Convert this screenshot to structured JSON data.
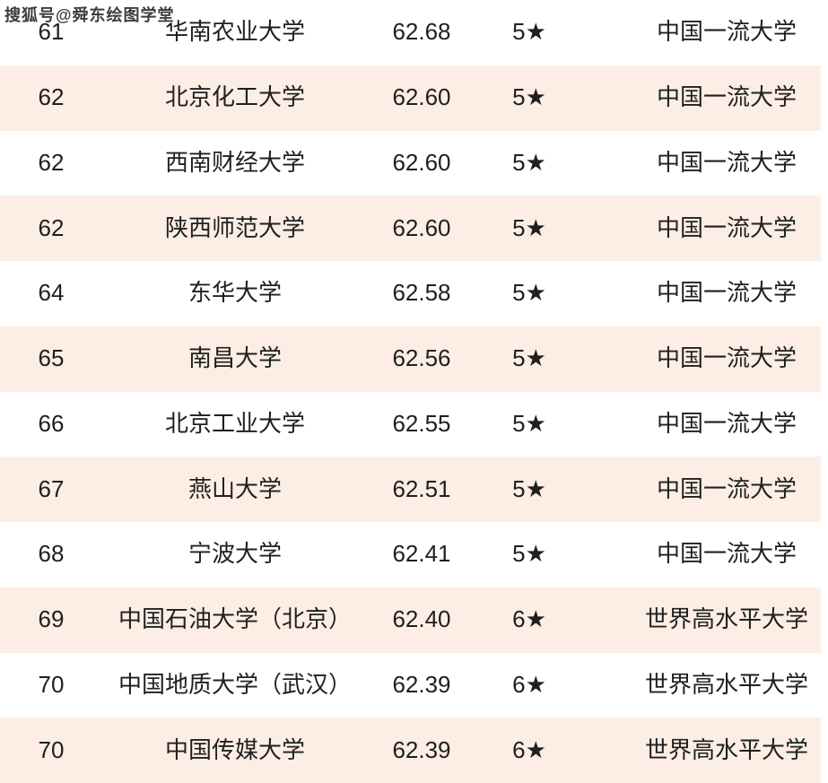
{
  "watermark": "搜狐号@舜东绘图学堂",
  "colors": {
    "row_alt_bg": "#fceee4",
    "row_bg": "#ffffff",
    "text": "#1f1f1f"
  },
  "chart_data": {
    "type": "table",
    "columns": [
      "rank",
      "university",
      "score",
      "star_rating",
      "tier"
    ],
    "rows": [
      {
        "rank": "61",
        "university": "华南农业大学",
        "score": "62.68",
        "star_rating": "5★",
        "tier": "中国一流大学"
      },
      {
        "rank": "62",
        "university": "北京化工大学",
        "score": "62.60",
        "star_rating": "5★",
        "tier": "中国一流大学"
      },
      {
        "rank": "62",
        "university": "西南财经大学",
        "score": "62.60",
        "star_rating": "5★",
        "tier": "中国一流大学"
      },
      {
        "rank": "62",
        "university": "陕西师范大学",
        "score": "62.60",
        "star_rating": "5★",
        "tier": "中国一流大学"
      },
      {
        "rank": "64",
        "university": "东华大学",
        "score": "62.58",
        "star_rating": "5★",
        "tier": "中国一流大学"
      },
      {
        "rank": "65",
        "university": "南昌大学",
        "score": "62.56",
        "star_rating": "5★",
        "tier": "中国一流大学"
      },
      {
        "rank": "66",
        "university": "北京工业大学",
        "score": "62.55",
        "star_rating": "5★",
        "tier": "中国一流大学"
      },
      {
        "rank": "67",
        "university": "燕山大学",
        "score": "62.51",
        "star_rating": "5★",
        "tier": "中国一流大学"
      },
      {
        "rank": "68",
        "university": "宁波大学",
        "score": "62.41",
        "star_rating": "5★",
        "tier": "中国一流大学"
      },
      {
        "rank": "69",
        "university": "中国石油大学（北京）",
        "score": "62.40",
        "star_rating": "6★",
        "tier": "世界高水平大学"
      },
      {
        "rank": "70",
        "university": "中国地质大学（武汉）",
        "score": "62.39",
        "star_rating": "6★",
        "tier": "世界高水平大学"
      },
      {
        "rank": "70",
        "university": "中国传媒大学",
        "score": "62.39",
        "star_rating": "6★",
        "tier": "世界高水平大学"
      }
    ]
  }
}
